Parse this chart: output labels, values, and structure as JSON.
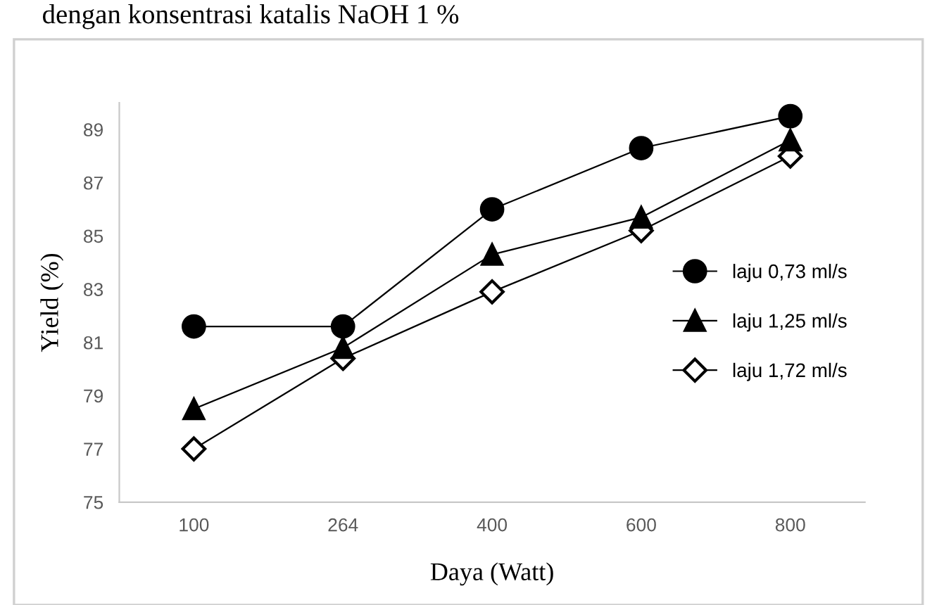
{
  "chart_data": {
    "type": "line",
    "title": "dengan konsentrasi katalis NaOH 1 %",
    "xlabel": "Daya (Watt)",
    "ylabel": "Yield (%)",
    "categories": [
      "100",
      "264",
      "400",
      "600",
      "800"
    ],
    "series": [
      {
        "name": "laju 0,73 ml/s",
        "color": "#000000",
        "marker": "circle",
        "values": [
          81.6,
          81.6,
          86.0,
          88.3,
          89.5
        ]
      },
      {
        "name": "laju 1,25 ml/s",
        "color": "#000000",
        "marker": "triangle",
        "values": [
          78.5,
          80.8,
          84.3,
          85.7,
          88.6
        ]
      },
      {
        "name": "laju 1,72 ml/s",
        "color": "#000000",
        "marker": "diamond",
        "values": [
          77.0,
          80.4,
          82.9,
          85.2,
          88.0
        ]
      }
    ],
    "ylim": [
      75,
      90
    ],
    "yticks": [
      75,
      77,
      79,
      81,
      83,
      85,
      87,
      89
    ],
    "grid": false,
    "legend": "right",
    "line_style": "solid"
  }
}
